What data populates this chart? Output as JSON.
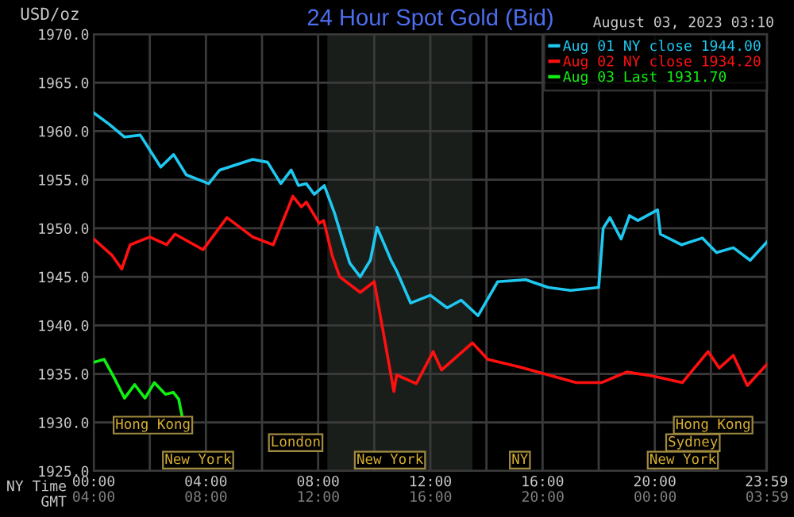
{
  "chart_data": {
    "type": "line",
    "title": "24 Hour Spot Gold (Bid)",
    "subtitle": "August 03, 2023 03:10",
    "ylabel": "USD/oz",
    "xlabel": "NY Time",
    "x2label": "GMT",
    "x": [
      0,
      0.56,
      1.1,
      1.66,
      2.39,
      2.85,
      3.3,
      4.1,
      4.49,
      5.67,
      6.2,
      6.67,
      7.04,
      7.3,
      7.58,
      7.86,
      8.22,
      8.58,
      8.86,
      9.13,
      9.5,
      9.86,
      10.1,
      10.6,
      10.8,
      11.3,
      12.0,
      12.6,
      13.1,
      13.7,
      14.4,
      15.4,
      16.2,
      17.0,
      18.0,
      18.16,
      18.4,
      18.8,
      19.1,
      19.4,
      20.1,
      20.2,
      20.95,
      21.7,
      22.2,
      22.8,
      23.4,
      24.0
    ],
    "series": [
      {
        "name": "Aug 01 NY close 1944.00",
        "color": "#1ec8f0",
        "values": [
          1961.9,
          1960.7,
          1959.4,
          1959.6,
          1956.3,
          1957.6,
          1955.5,
          1954.6,
          1956.0,
          1957.1,
          1956.8,
          1954.6,
          1956.0,
          1954.4,
          1954.6,
          1953.5,
          1954.4,
          1951.6,
          1948.9,
          1946.4,
          1945.0,
          1946.7,
          1950.1,
          1946.7,
          1945.6,
          1942.3,
          1943.1,
          1941.8,
          1942.6,
          1941.0,
          1944.5,
          1944.7,
          1943.9,
          1943.6,
          1943.9,
          1950.0,
          1951.1,
          1948.9,
          1951.3,
          1950.8,
          1951.9,
          1949.4,
          1948.3,
          1949.0,
          1947.5,
          1948.0,
          1946.7,
          1948.6
        ]
      },
      {
        "name": "Aug 02 NY close 1934.20",
        "color": "#ff1010",
        "x": [
          0,
          0.66,
          1.0,
          1.3,
          2.0,
          2.6,
          2.9,
          3.9,
          4.75,
          5.67,
          6.4,
          7.1,
          7.4,
          7.58,
          8.04,
          8.2,
          8.5,
          8.77,
          9.5,
          10.0,
          10.7,
          10.8,
          11.5,
          12.1,
          12.4,
          13.5,
          14.05,
          15.2,
          16.2,
          17.2,
          18.1,
          19.0,
          19.9,
          20.98,
          21.9,
          22.3,
          22.8,
          23.3,
          24.0
        ],
        "values": [
          1948.9,
          1947.2,
          1945.8,
          1948.3,
          1949.1,
          1948.3,
          1949.4,
          1947.8,
          1951.1,
          1949.1,
          1948.3,
          1953.3,
          1952.2,
          1952.7,
          1950.5,
          1950.8,
          1947.2,
          1945.0,
          1943.4,
          1944.5,
          1933.2,
          1934.9,
          1934.0,
          1937.3,
          1935.4,
          1938.2,
          1936.5,
          1935.7,
          1934.9,
          1934.1,
          1934.1,
          1935.2,
          1934.8,
          1934.1,
          1937.3,
          1935.6,
          1936.9,
          1933.8,
          1936.0
        ]
      },
      {
        "name": "Aug 03 Last 1931.70",
        "color": "#10f010",
        "x": [
          0,
          0.37,
          0.73,
          1.1,
          1.46,
          1.83,
          2.16,
          2.56,
          2.84,
          3.03,
          3.16
        ],
        "values": [
          1936.2,
          1936.5,
          1934.6,
          1932.5,
          1933.9,
          1932.5,
          1934.1,
          1932.9,
          1933.1,
          1932.4,
          1930.5
        ]
      }
    ],
    "xlim": [
      0,
      24
    ],
    "ylim": [
      1925,
      1970
    ],
    "xticks": [
      {
        "value": 0,
        "label": "00:00"
      },
      {
        "value": 2,
        "label": null
      },
      {
        "value": 4,
        "label": "04:00"
      },
      {
        "value": 6,
        "label": null
      },
      {
        "value": 8,
        "label": "08:00"
      },
      {
        "value": 10,
        "label": null
      },
      {
        "value": 12,
        "label": "12:00"
      },
      {
        "value": 14,
        "label": null
      },
      {
        "value": 16,
        "label": "16:00"
      },
      {
        "value": 18,
        "label": null
      },
      {
        "value": 20,
        "label": "20:00"
      },
      {
        "value": 22,
        "label": null
      },
      {
        "value": 23.98,
        "label": "23:59"
      }
    ],
    "x2lim": [
      "2023-08-03T04:00",
      "2023-08-04T03:59"
    ],
    "x2ticks": [
      {
        "value": "2023-08-03T04:00",
        "label": "04:00"
      },
      {
        "value": "2023-08-03T08:00",
        "label": "08:00"
      },
      {
        "value": "2023-08-03T12:00",
        "label": "12:00"
      },
      {
        "value": "2023-08-03T16:00",
        "label": "16:00"
      },
      {
        "value": "2023-08-03T20:00",
        "label": "20:00"
      },
      {
        "value": "2023-08-04T00:00",
        "label": "00:00"
      },
      {
        "value": "2023-08-04T03:59",
        "label": "03:59"
      }
    ],
    "yticks": [
      {
        "value": 1925,
        "label": "1925.0"
      },
      {
        "value": 1930,
        "label": "1930.0"
      },
      {
        "value": 1935,
        "label": "1935.0"
      },
      {
        "value": 1940,
        "label": "1940.0"
      },
      {
        "value": 1945,
        "label": "1945.0"
      },
      {
        "value": 1950,
        "label": "1950.0"
      },
      {
        "value": 1955,
        "label": "1955.0"
      },
      {
        "value": 1960,
        "label": "1960.0"
      },
      {
        "value": 1965,
        "label": "1965.0"
      },
      {
        "value": 1970,
        "label": "1970.0"
      }
    ],
    "bands": [
      {
        "axis": "x",
        "from": 8.33,
        "to": 13.5,
        "color": "#1a1e1a"
      }
    ],
    "annotations": [
      "Hong Kong",
      "London",
      "New York",
      "New York",
      "NY",
      "Hong Kong",
      "Sydney",
      "New York"
    ],
    "grid": true,
    "legend": "top right",
    "marker": "none",
    "line_style": "solid"
  }
}
